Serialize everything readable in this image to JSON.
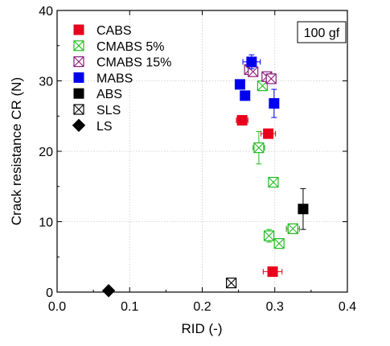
{
  "chart_data": {
    "type": "scatter",
    "xlabel": "RID (-)",
    "ylabel": "Crack resistance CR (N)",
    "xlim": [
      0,
      0.4
    ],
    "ylim": [
      0,
      40
    ],
    "xticks": [
      "0.0",
      "0.1",
      "0.2",
      "0.3",
      "0.4"
    ],
    "yticks": [
      "0",
      "10",
      "20",
      "30",
      "40"
    ],
    "grid": true,
    "legend_position": "top-left",
    "annotation": "100 gf",
    "series": [
      {
        "name": "CABS",
        "marker": "filled-square",
        "color": "#e8001c",
        "points": [
          {
            "x": 0.325,
            "y": 9.0,
            "xerr": 0.009,
            "yerr": 0
          },
          {
            "x": 0.297,
            "y": 2.9,
            "xerr": 0.013,
            "yerr": 0
          },
          {
            "x": 0.255,
            "y": 24.4,
            "xerr": 0.008,
            "yerr": 0
          },
          {
            "x": 0.291,
            "y": 22.5,
            "xerr": 0.01,
            "yerr": 0
          }
        ]
      },
      {
        "name": "CMABS 5%",
        "marker": "crossed-square",
        "color": "#22bb22",
        "points": [
          {
            "x": 0.278,
            "y": 20.5,
            "xerr": 0.008,
            "yerr": 2.3
          },
          {
            "x": 0.298,
            "y": 15.6,
            "xerr": 0.004,
            "yerr": 0
          },
          {
            "x": 0.292,
            "y": 8.0,
            "xerr": 0.005,
            "yerr": 0.9
          },
          {
            "x": 0.306,
            "y": 6.9,
            "xerr": 0.005,
            "yerr": 0
          },
          {
            "x": 0.325,
            "y": 9.0,
            "xerr": 0.009,
            "yerr": 0
          },
          {
            "x": 0.283,
            "y": 29.3,
            "xerr": 0.004,
            "yerr": 0
          }
        ]
      },
      {
        "name": "CMABS 15%",
        "marker": "crossed-square",
        "color": "#8a1a7a",
        "points": [
          {
            "x": 0.265,
            "y": 31.6,
            "xerr": 0.004,
            "yerr": 0
          },
          {
            "x": 0.27,
            "y": 31.3,
            "xerr": 0.004,
            "yerr": 0
          },
          {
            "x": 0.289,
            "y": 30.6,
            "xerr": 0.005,
            "yerr": 0
          },
          {
            "x": 0.295,
            "y": 30.3,
            "xerr": 0.005,
            "yerr": 0
          }
        ]
      },
      {
        "name": "MABS",
        "marker": "filled-square",
        "color": "#0000ee",
        "points": [
          {
            "x": 0.268,
            "y": 32.7,
            "xerr": 0.012,
            "yerr": 1.0
          },
          {
            "x": 0.252,
            "y": 29.5,
            "xerr": 0,
            "yerr": 0
          },
          {
            "x": 0.259,
            "y": 27.9,
            "xerr": 0,
            "yerr": 0
          },
          {
            "x": 0.299,
            "y": 26.8,
            "xerr": 0,
            "yerr": 2.0
          }
        ]
      },
      {
        "name": "ABS",
        "marker": "filled-square",
        "color": "#000000",
        "points": [
          {
            "x": 0.339,
            "y": 11.8,
            "xerr": 0,
            "yerr": 2.9
          }
        ]
      },
      {
        "name": "SLS",
        "marker": "crossed-square",
        "color": "#000000",
        "points": [
          {
            "x": 0.24,
            "y": 1.3,
            "xerr": 0.004,
            "yerr": 0
          }
        ]
      },
      {
        "name": "LS",
        "marker": "diamond",
        "color": "#000000",
        "points": [
          {
            "x": 0.071,
            "y": 0.2,
            "xerr": 0,
            "yerr": 0
          }
        ]
      }
    ]
  }
}
